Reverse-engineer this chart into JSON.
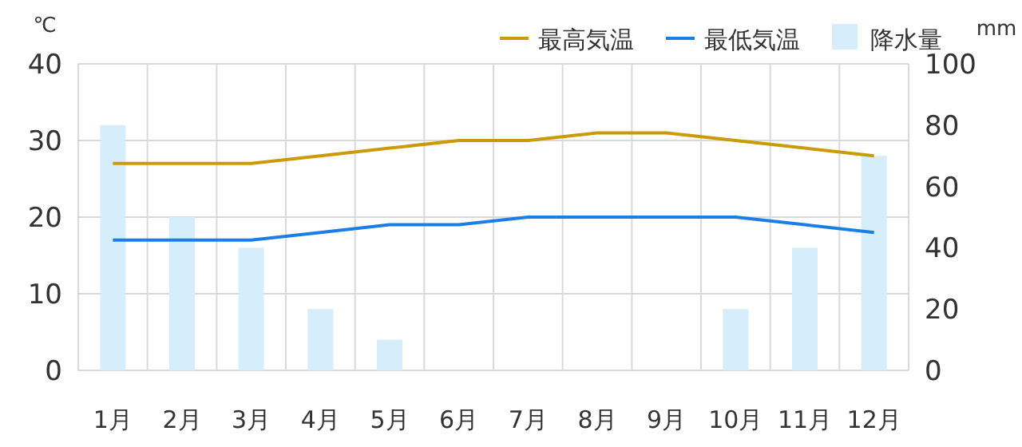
{
  "chart_data": {
    "type": "line",
    "ylabel": "℃",
    "y2label": "mm",
    "categories": [
      "1月",
      "2月",
      "3月",
      "4月",
      "5月",
      "6月",
      "7月",
      "8月",
      "9月",
      "10月",
      "11月",
      "12月"
    ],
    "series": [
      {
        "name": "最高気温",
        "color": "#cc9a06",
        "values": [
          27,
          27,
          27,
          28,
          29,
          30,
          30,
          31,
          31,
          30,
          29,
          28
        ]
      },
      {
        "name": "最低気温",
        "color": "#1a7ee6",
        "values": [
          17,
          17,
          17,
          18,
          19,
          19,
          20,
          20,
          20,
          20,
          19,
          18
        ]
      },
      {
        "name": "降水量",
        "type": "bar",
        "axis": "y2",
        "color": "#d6eefb",
        "values": [
          80,
          50,
          40,
          20,
          10,
          0,
          0,
          0,
          0,
          20,
          40,
          70
        ]
      }
    ],
    "ylim": [
      0,
      40
    ],
    "yticks": [
      0,
      10,
      20,
      30,
      40
    ],
    "y2lim": [
      0,
      100
    ],
    "y2ticks": [
      0,
      20,
      40,
      60,
      80,
      100
    ],
    "grid": true,
    "legend": "top right",
    "marker": "none",
    "line_style": "solid"
  }
}
